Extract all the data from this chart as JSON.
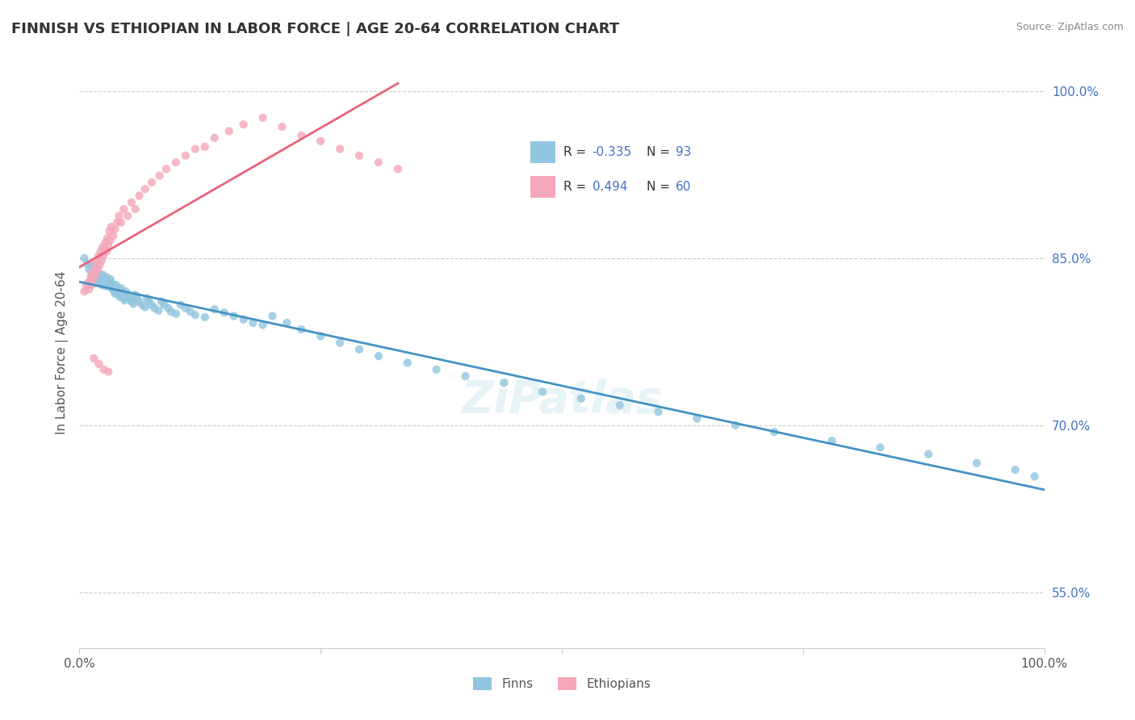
{
  "title": "FINNISH VS ETHIOPIAN IN LABOR FORCE | AGE 20-64 CORRELATION CHART",
  "source": "Source: ZipAtlas.com",
  "ylabel": "In Labor Force | Age 20-64",
  "xlim": [
    0.0,
    1.0
  ],
  "ylim": [
    0.5,
    1.03
  ],
  "y_ticks_right": [
    0.55,
    0.7,
    0.85,
    1.0
  ],
  "y_tick_labels_right": [
    "55.0%",
    "70.0%",
    "85.0%",
    "100.0%"
  ],
  "legend_finn_r": "-0.335",
  "legend_finn_n": "93",
  "legend_eth_r": "0.494",
  "legend_eth_n": "60",
  "finn_color": "#92c5de",
  "eth_color": "#f4a7b9",
  "finn_line_color": "#4393c3",
  "eth_line_color": "#e8637a",
  "background_color": "#ffffff",
  "grid_color": "#cccccc",
  "watermark": "ZiPatlas",
  "finn_x": [
    0.005,
    0.008,
    0.01,
    0.012,
    0.013,
    0.015,
    0.016,
    0.017,
    0.018,
    0.019,
    0.02,
    0.021,
    0.022,
    0.023,
    0.024,
    0.025,
    0.026,
    0.027,
    0.028,
    0.029,
    0.03,
    0.031,
    0.032,
    0.033,
    0.034,
    0.035,
    0.036,
    0.037,
    0.038,
    0.039,
    0.04,
    0.041,
    0.042,
    0.043,
    0.044,
    0.045,
    0.046,
    0.047,
    0.048,
    0.05,
    0.052,
    0.054,
    0.056,
    0.058,
    0.06,
    0.062,
    0.065,
    0.068,
    0.07,
    0.072,
    0.075,
    0.078,
    0.082,
    0.085,
    0.088,
    0.092,
    0.095,
    0.1,
    0.105,
    0.11,
    0.115,
    0.12,
    0.13,
    0.14,
    0.15,
    0.16,
    0.17,
    0.18,
    0.19,
    0.2,
    0.215,
    0.23,
    0.25,
    0.27,
    0.29,
    0.31,
    0.34,
    0.37,
    0.4,
    0.44,
    0.48,
    0.52,
    0.56,
    0.6,
    0.64,
    0.68,
    0.72,
    0.78,
    0.83,
    0.88,
    0.93,
    0.97,
    0.99
  ],
  "finn_y": [
    0.85,
    0.845,
    0.84,
    0.843,
    0.835,
    0.842,
    0.838,
    0.833,
    0.83,
    0.828,
    0.836,
    0.832,
    0.829,
    0.826,
    0.835,
    0.831,
    0.828,
    0.825,
    0.833,
    0.83,
    0.827,
    0.824,
    0.831,
    0.828,
    0.825,
    0.822,
    0.82,
    0.818,
    0.826,
    0.823,
    0.82,
    0.817,
    0.815,
    0.823,
    0.82,
    0.817,
    0.814,
    0.812,
    0.82,
    0.817,
    0.814,
    0.811,
    0.809,
    0.817,
    0.814,
    0.811,
    0.808,
    0.806,
    0.814,
    0.811,
    0.808,
    0.805,
    0.803,
    0.811,
    0.808,
    0.805,
    0.802,
    0.8,
    0.808,
    0.805,
    0.802,
    0.799,
    0.797,
    0.804,
    0.801,
    0.798,
    0.795,
    0.792,
    0.79,
    0.798,
    0.792,
    0.786,
    0.78,
    0.774,
    0.768,
    0.762,
    0.756,
    0.75,
    0.744,
    0.738,
    0.73,
    0.724,
    0.718,
    0.712,
    0.706,
    0.7,
    0.694,
    0.686,
    0.68,
    0.674,
    0.666,
    0.66,
    0.654
  ],
  "eth_x": [
    0.005,
    0.007,
    0.009,
    0.01,
    0.011,
    0.012,
    0.013,
    0.014,
    0.015,
    0.016,
    0.017,
    0.018,
    0.019,
    0.02,
    0.021,
    0.022,
    0.023,
    0.024,
    0.025,
    0.026,
    0.027,
    0.028,
    0.029,
    0.03,
    0.031,
    0.032,
    0.033,
    0.035,
    0.037,
    0.039,
    0.041,
    0.043,
    0.046,
    0.05,
    0.054,
    0.058,
    0.062,
    0.068,
    0.075,
    0.083,
    0.09,
    0.1,
    0.11,
    0.12,
    0.13,
    0.14,
    0.155,
    0.17,
    0.19,
    0.21,
    0.23,
    0.25,
    0.27,
    0.29,
    0.31,
    0.33,
    0.015,
    0.02,
    0.025,
    0.03
  ],
  "eth_y": [
    0.82,
    0.825,
    0.828,
    0.822,
    0.83,
    0.834,
    0.826,
    0.838,
    0.832,
    0.844,
    0.836,
    0.848,
    0.84,
    0.852,
    0.844,
    0.856,
    0.848,
    0.86,
    0.852,
    0.858,
    0.864,
    0.856,
    0.868,
    0.862,
    0.874,
    0.866,
    0.878,
    0.87,
    0.876,
    0.882,
    0.888,
    0.882,
    0.894,
    0.888,
    0.9,
    0.894,
    0.906,
    0.912,
    0.918,
    0.924,
    0.93,
    0.936,
    0.942,
    0.948,
    0.95,
    0.958,
    0.964,
    0.97,
    0.976,
    0.968,
    0.96,
    0.955,
    0.948,
    0.942,
    0.936,
    0.93,
    0.76,
    0.755,
    0.75,
    0.748
  ]
}
